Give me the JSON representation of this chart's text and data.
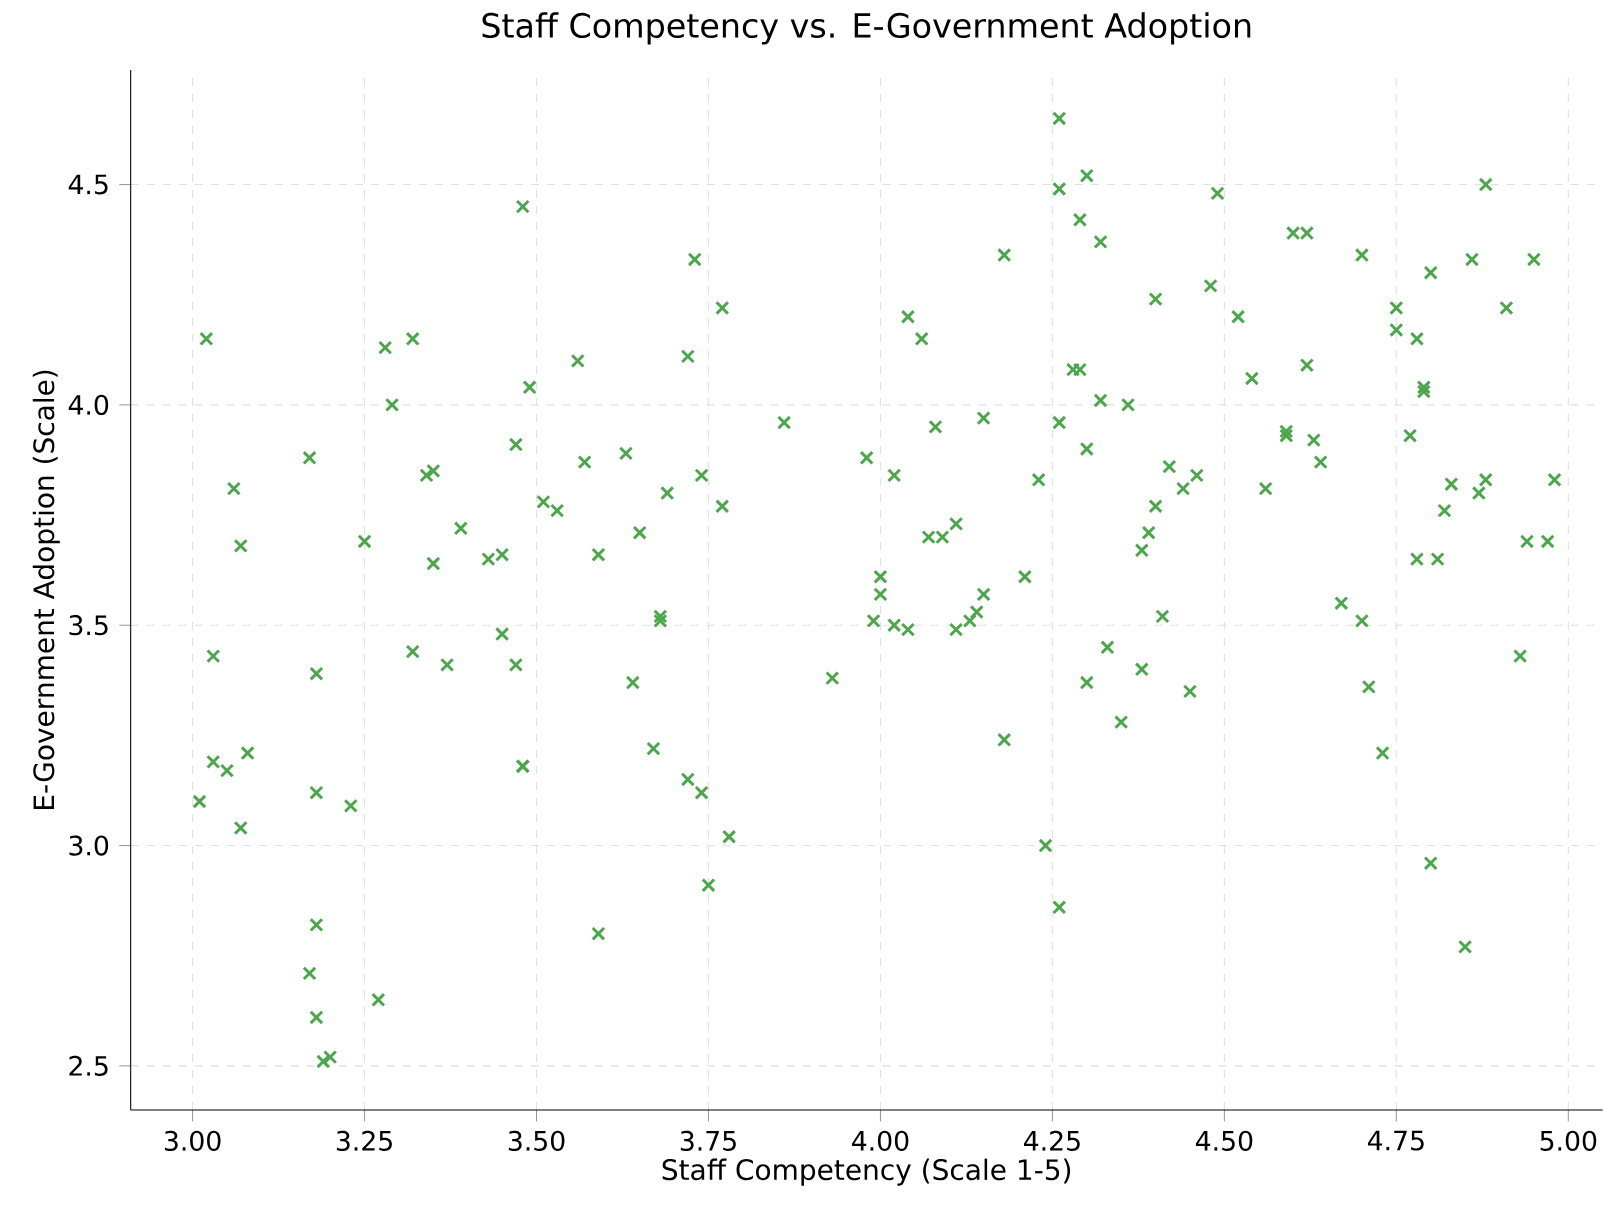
{
  "chart_data": {
    "type": "scatter",
    "title": "Staff Competency vs. E-Government Adoption",
    "xlabel": "Staff Competency (Scale 1-5)",
    "ylabel": "E-Government Adoption (Scale)",
    "xlim": [
      2.91,
      5.05
    ],
    "ylim": [
      2.4,
      4.76
    ],
    "xticks": [
      {
        "value": 3.0,
        "label": "3.00"
      },
      {
        "value": 3.25,
        "label": "3.25"
      },
      {
        "value": 3.5,
        "label": "3.50"
      },
      {
        "value": 3.75,
        "label": "3.75"
      },
      {
        "value": 4.0,
        "label": "4.00"
      },
      {
        "value": 4.25,
        "label": "4.25"
      },
      {
        "value": 4.5,
        "label": "4.50"
      },
      {
        "value": 4.75,
        "label": "4.75"
      },
      {
        "value": 5.0,
        "label": "5.00"
      }
    ],
    "yticks": [
      {
        "value": 2.5,
        "label": "2.5"
      },
      {
        "value": 3.0,
        "label": "3.0"
      },
      {
        "value": 3.5,
        "label": "3.5"
      },
      {
        "value": 4.0,
        "label": "4.0"
      },
      {
        "value": 4.5,
        "label": "4.5"
      }
    ],
    "grid": true,
    "marker": "cross",
    "series": [
      {
        "color": "#4ca64c",
        "x": [
          3.02,
          3.03,
          3.03,
          3.05,
          3.01,
          3.06,
          3.07,
          3.08,
          3.07,
          3.17,
          3.18,
          3.18,
          3.17,
          3.18,
          3.18,
          3.19,
          3.2,
          3.23,
          3.25,
          3.27,
          3.28,
          3.29,
          3.32,
          3.32,
          3.34,
          3.35,
          3.35,
          3.37,
          3.39,
          3.43,
          3.45,
          3.45,
          3.47,
          3.47,
          3.48,
          3.48,
          3.49,
          3.48,
          3.51,
          3.53,
          3.56,
          3.57,
          3.59,
          3.59,
          3.63,
          3.64,
          3.65,
          3.67,
          3.68,
          3.68,
          3.69,
          3.72,
          3.72,
          3.73,
          3.74,
          3.74,
          3.75,
          3.77,
          3.77,
          3.78,
          3.86,
          3.93,
          3.98,
          3.99,
          4.0,
          4.0,
          4.02,
          4.02,
          4.04,
          4.04,
          4.06,
          4.07,
          4.08,
          4.09,
          4.11,
          4.11,
          4.13,
          4.14,
          4.15,
          4.15,
          4.18,
          4.18,
          4.21,
          4.23,
          4.24,
          4.26,
          4.26,
          4.26,
          4.26,
          4.28,
          4.29,
          4.29,
          4.3,
          4.3,
          4.3,
          4.32,
          4.32,
          4.33,
          4.35,
          4.36,
          4.38,
          4.38,
          4.39,
          4.4,
          4.4,
          4.41,
          4.42,
          4.44,
          4.45,
          4.46,
          4.48,
          4.49,
          4.52,
          4.54,
          4.56,
          4.59,
          4.59,
          4.6,
          4.62,
          4.62,
          4.63,
          4.64,
          4.67,
          4.7,
          4.7,
          4.71,
          4.73,
          4.75,
          4.75,
          4.77,
          4.78,
          4.78,
          4.79,
          4.79,
          4.8,
          4.8,
          4.81,
          4.82,
          4.83,
          4.85,
          4.86,
          4.87,
          4.88,
          4.88,
          4.91,
          4.93,
          4.94,
          4.95,
          4.97,
          4.98
        ],
        "values": [
          4.15,
          3.43,
          3.19,
          3.17,
          3.1,
          3.81,
          3.68,
          3.21,
          3.04,
          3.88,
          3.39,
          3.12,
          2.71,
          2.82,
          2.61,
          2.51,
          2.52,
          3.09,
          3.69,
          2.65,
          4.13,
          4.0,
          4.15,
          3.44,
          3.84,
          3.85,
          3.64,
          3.41,
          3.72,
          3.65,
          3.66,
          3.48,
          3.41,
          3.91,
          4.45,
          3.18,
          4.04,
          3.18,
          3.78,
          3.76,
          4.1,
          3.87,
          3.66,
          2.8,
          3.89,
          3.37,
          3.71,
          3.22,
          3.52,
          3.51,
          3.8,
          4.11,
          3.15,
          4.33,
          3.12,
          3.84,
          2.91,
          4.22,
          3.77,
          3.02,
          3.96,
          3.38,
          3.88,
          3.51,
          3.61,
          3.57,
          3.84,
          3.5,
          4.2,
          3.49,
          4.15,
          3.7,
          3.95,
          3.7,
          3.73,
          3.49,
          3.51,
          3.53,
          3.57,
          3.97,
          4.34,
          3.24,
          3.61,
          3.83,
          3.0,
          2.86,
          4.65,
          4.49,
          3.96,
          4.08,
          4.08,
          4.42,
          4.52,
          3.9,
          3.37,
          4.37,
          4.01,
          3.45,
          3.28,
          4.0,
          3.4,
          3.67,
          3.71,
          4.24,
          3.77,
          3.52,
          3.86,
          3.81,
          3.35,
          3.84,
          4.27,
          4.48,
          4.2,
          4.06,
          3.81,
          3.93,
          3.94,
          4.39,
          4.39,
          4.09,
          3.92,
          3.87,
          3.55,
          4.34,
          3.51,
          3.36,
          3.21,
          4.22,
          4.17,
          3.93,
          4.15,
          3.65,
          4.04,
          4.03,
          4.3,
          2.96,
          3.65,
          3.76,
          3.82,
          2.77,
          4.33,
          3.8,
          4.5,
          3.83,
          4.22,
          3.43,
          3.69,
          4.33,
          3.69,
          3.83
        ]
      }
    ]
  }
}
